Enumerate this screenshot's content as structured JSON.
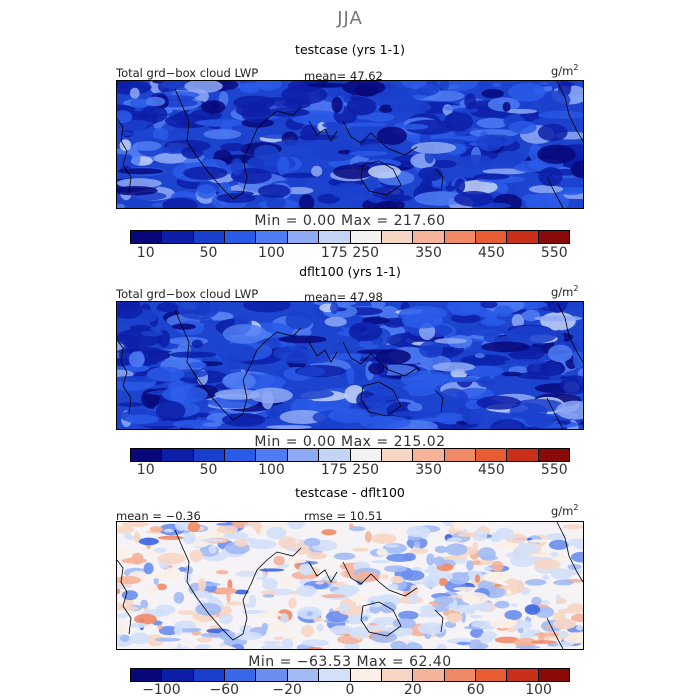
{
  "title": "JJA",
  "colors": {
    "lwp": [
      "#08087a",
      "#0d1fa8",
      "#1a3fcc",
      "#2a5ae8",
      "#4f7cf2",
      "#8faaf5",
      "#c4d4f7",
      "#f2f2f2",
      "#f7d6c4",
      "#f5b39a",
      "#f08a66",
      "#e85c33",
      "#c8301a",
      "#8a0a0a"
    ],
    "diff": [
      "#08087a",
      "#0d1fa8",
      "#1a3fcc",
      "#3a66e8",
      "#6a8ef0",
      "#a3bbf5",
      "#d3e0fa",
      "#faf0e8",
      "#f7d6c4",
      "#f5b39a",
      "#f08a66",
      "#e85c33",
      "#c8301a",
      "#8a0a0a"
    ]
  },
  "panels": [
    {
      "title": "testcase (yrs 1-1)",
      "label": "Total grd−box cloud LWP",
      "mean_text": "mean=  47.62",
      "units": "g/m",
      "units_sup": "2",
      "minmax": "Min =    0.00  Max =  217.60",
      "ticks": [
        "10",
        "50",
        "100",
        "175",
        "250",
        "350",
        "450",
        "550"
      ]
    },
    {
      "title": "dflt100 (yrs 1-1)",
      "label": "Total grd−box cloud LWP",
      "mean_text": "mean=  47.98",
      "units": "g/m",
      "units_sup": "2",
      "minmax": "Min =    0.00  Max =  215.02",
      "ticks": [
        "10",
        "50",
        "100",
        "175",
        "250",
        "350",
        "450",
        "550"
      ]
    },
    {
      "title": "testcase - dflt100",
      "mean_text": "mean =  −0.36",
      "rmse_text": "rmse =  10.51",
      "units": "g/m",
      "units_sup": "2",
      "minmax": "Min = −63.53  Max =   62.40",
      "ticks": [
        "−100",
        "−60",
        "−20",
        "0",
        "20",
        "60",
        "100"
      ]
    }
  ],
  "chart_data": [
    {
      "type": "heatmap",
      "title": "testcase (yrs 1-1)",
      "variable": "Total grd-box cloud LWP",
      "units": "g/m2",
      "mean": 47.62,
      "min": 0.0,
      "max": 217.6,
      "colorbar_ticks": [
        10,
        50,
        100,
        175,
        250,
        350,
        450,
        550
      ]
    },
    {
      "type": "heatmap",
      "title": "dflt100 (yrs 1-1)",
      "variable": "Total grd-box cloud LWP",
      "units": "g/m2",
      "mean": 47.98,
      "min": 0.0,
      "max": 215.02,
      "colorbar_ticks": [
        10,
        50,
        100,
        175,
        250,
        350,
        450,
        550
      ]
    },
    {
      "type": "heatmap",
      "title": "testcase - dflt100",
      "units": "g/m2",
      "mean": -0.36,
      "rmse": 10.51,
      "min": -63.53,
      "max": 62.4,
      "colorbar_ticks": [
        -100,
        -60,
        -20,
        0,
        20,
        60,
        100
      ]
    }
  ]
}
